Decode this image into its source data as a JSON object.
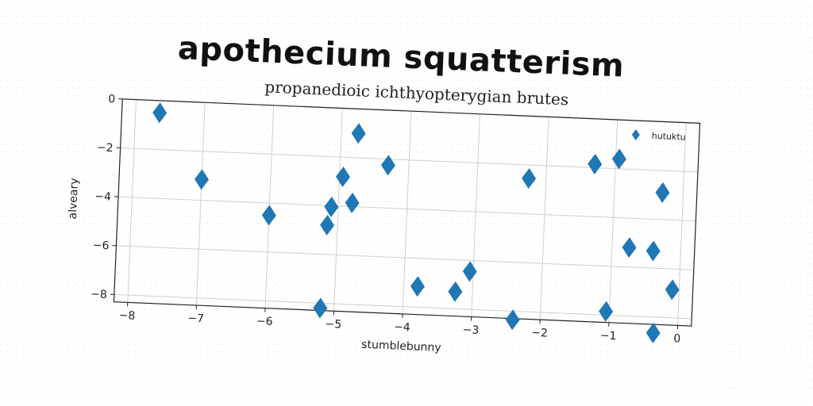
{
  "chart_data": {
    "type": "scatter",
    "title": "apothecium squatterism",
    "subtitle": "propanedioic ichthyopterygian brutes",
    "xlabel": "stumblebunny",
    "ylabel": "alveary",
    "xlim": [
      -8.2,
      0.2
    ],
    "ylim": [
      -8.3,
      0
    ],
    "xticks": [
      -8,
      -7,
      -6,
      -5,
      -4,
      -3,
      -2,
      -1,
      0
    ],
    "xtick_labels": [
      "−8",
      "−7",
      "−6",
      "−5",
      "−4",
      "−3",
      "−2",
      "−1",
      "0"
    ],
    "yticks": [
      0,
      -2,
      -4,
      -6,
      -8
    ],
    "ytick_labels": [
      "0",
      "−2",
      "−4",
      "−6",
      "−8"
    ],
    "grid": true,
    "legend_position": "top-right",
    "series": [
      {
        "name": "hutuktu",
        "marker": "diamond",
        "color": "#1f77b4",
        "points": [
          {
            "x": -7.65,
            "y": -0.5
          },
          {
            "x": -7.0,
            "y": -3.15
          },
          {
            "x": -6.0,
            "y": -4.5
          },
          {
            "x": -5.2,
            "y": -8.2
          },
          {
            "x": -5.15,
            "y": -4.8
          },
          {
            "x": -5.1,
            "y": -4.05
          },
          {
            "x": -4.95,
            "y": -2.8
          },
          {
            "x": -4.8,
            "y": -3.85
          },
          {
            "x": -4.75,
            "y": -1.0
          },
          {
            "x": -4.3,
            "y": -2.25
          },
          {
            "x": -3.8,
            "y": -7.15
          },
          {
            "x": -3.25,
            "y": -7.3
          },
          {
            "x": -3.05,
            "y": -6.45
          },
          {
            "x": -2.4,
            "y": -8.35
          },
          {
            "x": -2.25,
            "y": -2.55
          },
          {
            "x": -1.3,
            "y": -1.85
          },
          {
            "x": -1.05,
            "y": -7.85
          },
          {
            "x": -0.95,
            "y": -1.6
          },
          {
            "x": -0.75,
            "y": -5.2
          },
          {
            "x": -0.4,
            "y": -5.3
          },
          {
            "x": -0.35,
            "y": -8.65
          },
          {
            "x": -0.3,
            "y": -2.9
          },
          {
            "x": -0.1,
            "y": -6.85
          }
        ]
      }
    ]
  }
}
